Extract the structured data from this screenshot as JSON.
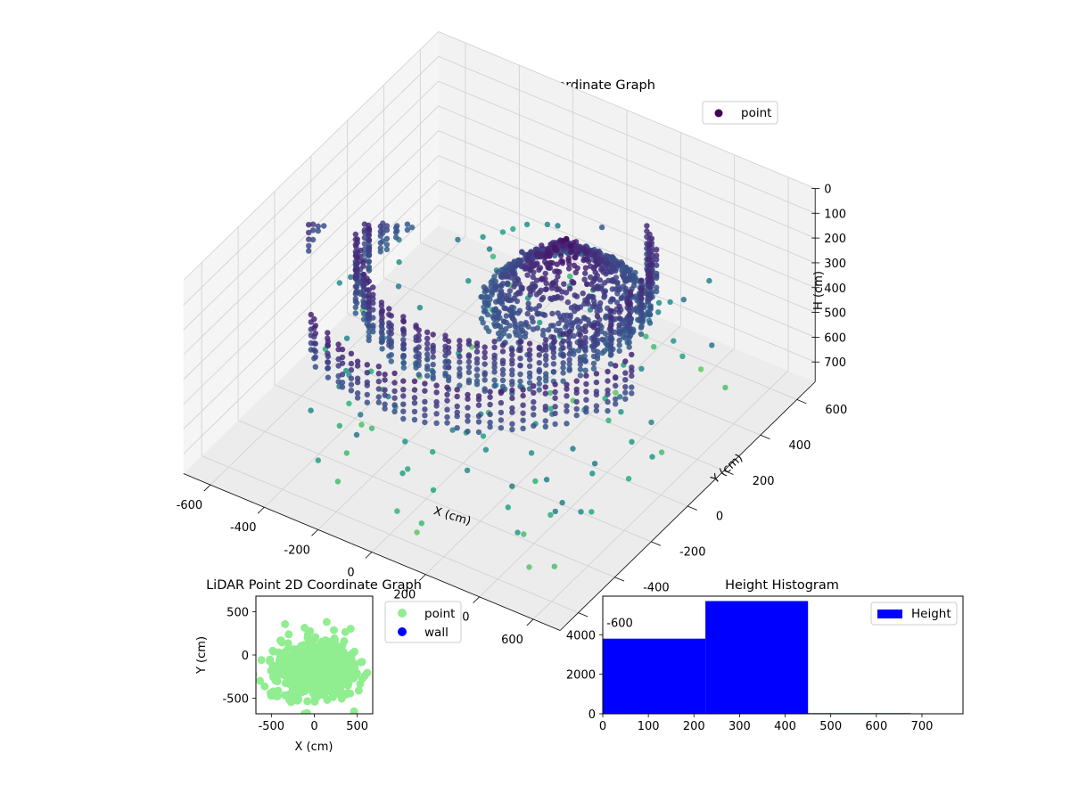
{
  "chart_data": [
    {
      "type": "scatter",
      "projection": "3d",
      "title": "LiDAR Point 3D Coordinate Graph",
      "xlabel": "X (cm)",
      "ylabel": "Y (cm)",
      "zlabel": "H (cm)",
      "xticks": [
        "-600",
        "-400",
        "-200",
        "0",
        "200",
        "400",
        "600"
      ],
      "yticks": [
        "-600",
        "-400",
        "-200",
        "0",
        "200",
        "400",
        "600"
      ],
      "zticks": [
        "0",
        "100",
        "200",
        "300",
        "400",
        "500",
        "600",
        "700"
      ],
      "xlim": [
        -700,
        700
      ],
      "ylim": [
        -700,
        700
      ],
      "zlim": [
        0,
        780
      ],
      "z_axis_inverted": true,
      "grid": true,
      "colormap": "viridis",
      "legend": {
        "position": "top-right",
        "entries": [
          "point"
        ],
        "color": "#440154"
      },
      "series": [
        {
          "name": "point",
          "description_ring_outer_radius_cm": 600,
          "description_ring_inner_radius_cm": 450,
          "description_center_mound_radius_cm": 260
        }
      ]
    },
    {
      "type": "scatter",
      "title": "LiDAR Point 2D Coordinate Graph",
      "xlabel": "X (cm)",
      "ylabel": "Y (cm)",
      "xticks": [
        "-500",
        "0",
        "500"
      ],
      "yticks": [
        "-500",
        "0",
        "500"
      ],
      "xlim": [
        -680,
        680
      ],
      "ylim": [
        -680,
        680
      ],
      "legend": {
        "position": "right-outside",
        "entries": [
          {
            "name": "point",
            "color": "#90ee90"
          },
          {
            "name": "wall",
            "color": "#0000ff"
          }
        ]
      },
      "series": [
        {
          "name": "point",
          "color": "#90ee90"
        },
        {
          "name": "wall",
          "color": "#0000ff"
        }
      ]
    },
    {
      "type": "bar",
      "subtype": "histogram",
      "title": "Height Histogram",
      "xticks": [
        "0",
        "100",
        "200",
        "300",
        "400",
        "500",
        "600",
        "700"
      ],
      "yticks": [
        "0",
        "2000",
        "4000"
      ],
      "xlim": [
        0,
        790
      ],
      "ylim": [
        0,
        5950
      ],
      "color": "#0000ff",
      "legend": {
        "position": "top-right",
        "entries": [
          "Height"
        ]
      },
      "series": [
        {
          "name": "Height",
          "bins": [
            {
              "from": 0,
              "to": 225,
              "count": 3800
            },
            {
              "from": 225,
              "to": 450,
              "count": 5700
            },
            {
              "from": 450,
              "to": 675,
              "count": 30
            },
            {
              "from": 675,
              "to": 790,
              "count": 20
            }
          ]
        }
      ]
    }
  ]
}
